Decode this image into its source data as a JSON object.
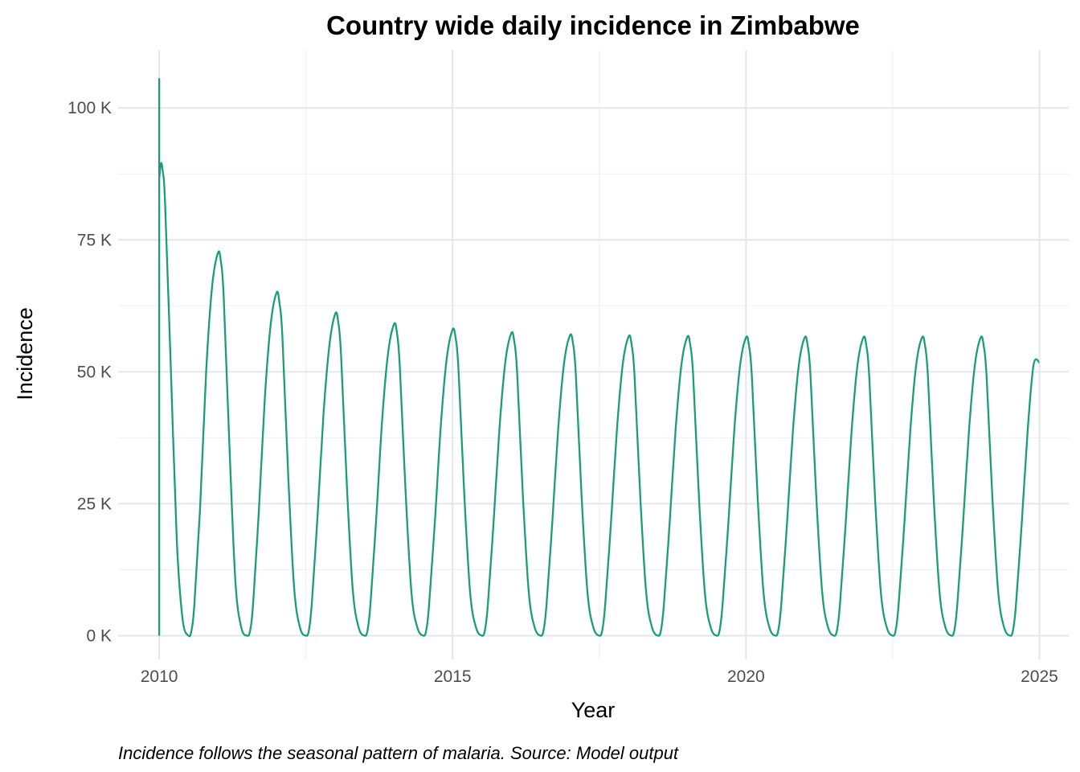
{
  "chart_data": {
    "type": "line",
    "title": "Country wide daily incidence in Zimbabwe",
    "xlabel": "Year",
    "ylabel": "Incidence",
    "caption": "Incidence follows the seasonal pattern of malaria. Source: Model output",
    "xlim": [
      2009.3,
      2025.5
    ],
    "ylim": [
      -4500,
      111000
    ],
    "x_ticks": [
      2010,
      2015,
      2020,
      2025
    ],
    "x_tick_labels": [
      "2010",
      "2015",
      "2020",
      "2025"
    ],
    "y_ticks": [
      0,
      25000,
      50000,
      75000,
      100000
    ],
    "y_tick_labels": [
      "0 K",
      "25 K",
      "50 K",
      "75 K",
      "100 K"
    ],
    "x_minor_ticks": [
      2012.5,
      2017.5,
      2022.5
    ],
    "y_minor_ticks": [
      12500,
      37500,
      62500,
      87500
    ],
    "grid": true,
    "legend": "none",
    "series": [
      {
        "color": "#1b9e77",
        "x": [
          2010.0,
          2010.0,
          2010.0,
          2010.03,
          2010.06,
          2010.1,
          2010.2,
          2010.3,
          2010.4,
          2010.5,
          2010.55,
          2010.6,
          2010.7,
          2010.8,
          2010.9,
          2011.0,
          2011.05,
          2011.1,
          2011.2,
          2011.3,
          2011.4,
          2011.5,
          2011.55,
          2011.6,
          2011.7,
          2011.8,
          2011.9,
          2012.0,
          2012.05,
          2012.1,
          2012.2,
          2012.3,
          2012.4,
          2012.5,
          2012.55,
          2012.6,
          2012.7,
          2012.8,
          2012.9,
          2013.0,
          2013.05,
          2013.1,
          2013.2,
          2013.3,
          2013.4,
          2013.5,
          2013.55,
          2013.6,
          2013.7,
          2013.8,
          2013.9,
          2014.0,
          2014.05,
          2014.1,
          2014.2,
          2014.3,
          2014.4,
          2014.5,
          2014.55,
          2014.6,
          2014.7,
          2014.8,
          2014.9,
          2015.0,
          2015.05,
          2015.1,
          2015.2,
          2015.3,
          2015.4,
          2015.5,
          2015.55,
          2015.6,
          2015.7,
          2015.8,
          2015.9,
          2016.0,
          2016.05,
          2016.1,
          2016.2,
          2016.3,
          2016.4,
          2016.5,
          2016.55,
          2016.6,
          2016.7,
          2016.8,
          2016.9,
          2017.0,
          2017.05,
          2017.1,
          2017.2,
          2017.3,
          2017.4,
          2017.5,
          2017.55,
          2017.6,
          2017.7,
          2017.8,
          2017.9,
          2018.0,
          2018.05,
          2018.1,
          2018.2,
          2018.3,
          2018.4,
          2018.5,
          2018.55,
          2018.6,
          2018.7,
          2018.8,
          2018.9,
          2019.0,
          2019.05,
          2019.1,
          2019.2,
          2019.3,
          2019.4,
          2019.5,
          2019.55,
          2019.6,
          2019.7,
          2019.8,
          2019.9,
          2020.0,
          2020.05,
          2020.1,
          2020.2,
          2020.3,
          2020.4,
          2020.5,
          2020.55,
          2020.6,
          2020.7,
          2020.8,
          2020.9,
          2021.0,
          2021.05,
          2021.1,
          2021.2,
          2021.3,
          2021.4,
          2021.5,
          2021.55,
          2021.6,
          2021.7,
          2021.8,
          2021.9,
          2022.0,
          2022.05,
          2022.1,
          2022.2,
          2022.3,
          2022.4,
          2022.5,
          2022.55,
          2022.6,
          2022.7,
          2022.8,
          2022.9,
          2023.0,
          2023.05,
          2023.1,
          2023.2,
          2023.3,
          2023.4,
          2023.5,
          2023.55,
          2023.6,
          2023.7,
          2023.8,
          2023.9,
          2024.0,
          2024.05,
          2024.1,
          2024.2,
          2024.3,
          2024.4,
          2024.5,
          2024.55,
          2024.6,
          2024.7,
          2024.8,
          2024.9,
          2025.0
        ],
        "y": [
          0,
          105500,
          86500,
          89500,
          88000,
          82000,
          50000,
          18000,
          3000,
          0,
          1000,
          6000,
          25000,
          50000,
          66000,
          72500,
          71000,
          64000,
          35000,
          10000,
          1500,
          0,
          1000,
          6000,
          24000,
          45000,
          59000,
          65000,
          63000,
          56500,
          30000,
          9000,
          1500,
          0,
          1000,
          6000,
          23000,
          42000,
          55000,
          61000,
          59500,
          53000,
          28000,
          8500,
          1500,
          0,
          1000,
          6000,
          22500,
          41000,
          53500,
          59000,
          57500,
          51000,
          27000,
          8000,
          1500,
          0,
          1000,
          6000,
          22000,
          40000,
          52500,
          58000,
          56500,
          50500,
          26500,
          8000,
          1500,
          0,
          1000,
          5800,
          21800,
          39500,
          52000,
          57300,
          55800,
          49800,
          26000,
          8000,
          1500,
          0,
          1000,
          5800,
          21700,
          39300,
          51700,
          56900,
          55500,
          49500,
          26000,
          8000,
          1500,
          0,
          1000,
          5800,
          21600,
          39000,
          51500,
          56700,
          55200,
          49300,
          25900,
          8000,
          1500,
          0,
          1000,
          5800,
          21600,
          39000,
          51400,
          56600,
          55100,
          49200,
          25800,
          8000,
          1500,
          0,
          1000,
          5800,
          21500,
          38900,
          51300,
          56500,
          55000,
          49100,
          25800,
          8000,
          1500,
          0,
          1000,
          5800,
          21500,
          38900,
          51300,
          56500,
          55000,
          49100,
          25800,
          8000,
          1500,
          0,
          1000,
          5800,
          21500,
          38900,
          51300,
          56500,
          55000,
          49100,
          25800,
          8000,
          1500,
          0,
          1000,
          5800,
          21500,
          38900,
          51300,
          56500,
          55000,
          49100,
          25800,
          8000,
          1500,
          0,
          1000,
          5800,
          21500,
          38900,
          51300,
          56500,
          55000,
          49100,
          25800,
          8000,
          1500,
          0,
          1000,
          5800,
          21500,
          38900,
          51300,
          51800
        ]
      }
    ]
  }
}
